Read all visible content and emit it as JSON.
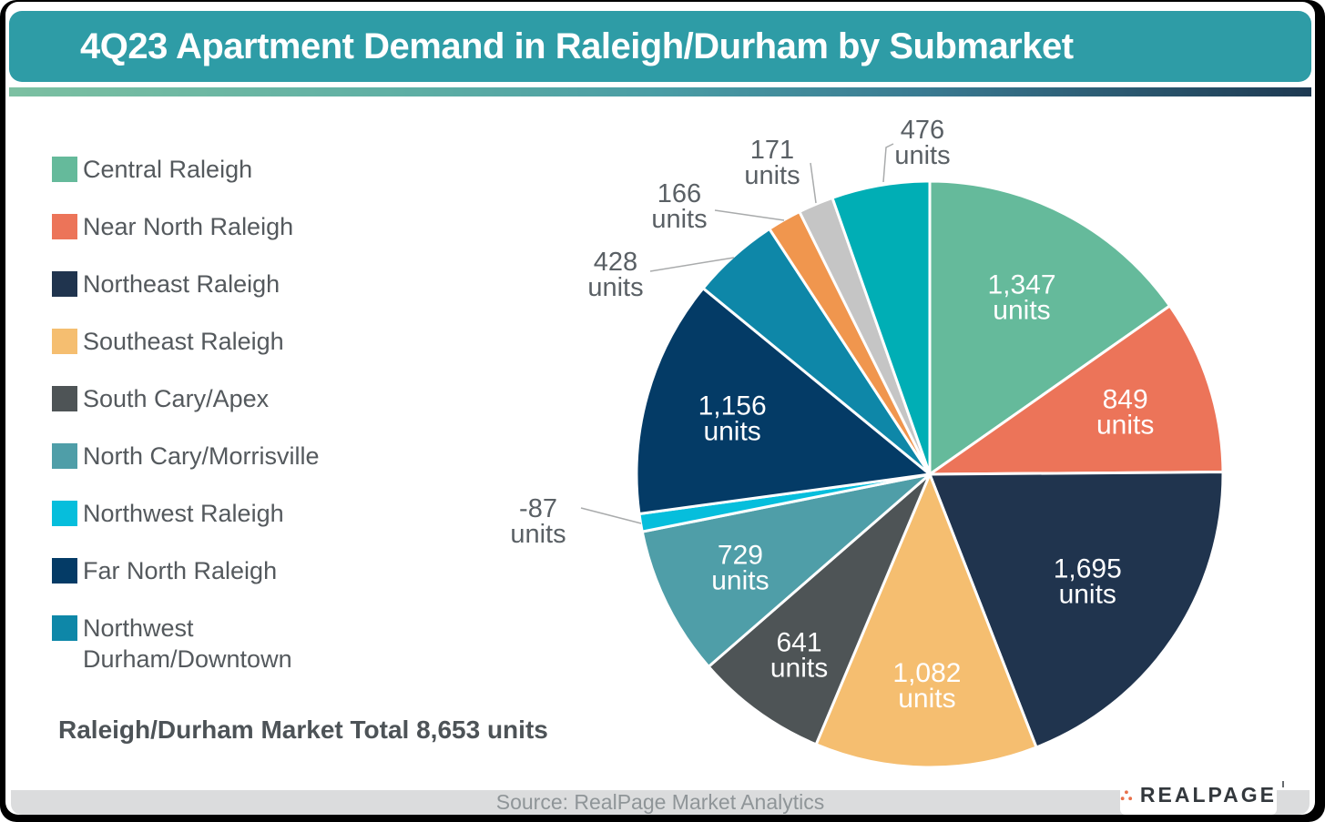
{
  "header": {
    "title": "4Q23 Apartment Demand in Raleigh/Durham by Submarket"
  },
  "legend": [
    {
      "label_lines": [
        "Central Raleigh"
      ],
      "color": "#65BA9B"
    },
    {
      "label_lines": [
        "Near North Raleigh"
      ],
      "color": "#EC7459"
    },
    {
      "label_lines": [
        "Northeast Raleigh"
      ],
      "color": "#20344E"
    },
    {
      "label_lines": [
        "Southeast Raleigh"
      ],
      "color": "#F5BE70"
    },
    {
      "label_lines": [
        "South Cary/Apex"
      ],
      "color": "#4E5456"
    },
    {
      "label_lines": [
        "North Cary/Morrisville"
      ],
      "color": "#4F9EA8"
    },
    {
      "label_lines": [
        "Northwest Raleigh"
      ],
      "color": "#06BEDC"
    },
    {
      "label_lines": [
        "Far North Raleigh"
      ],
      "color": "#043B66"
    },
    {
      "label_lines": [
        "Northwest",
        "Durham/Downtown"
      ],
      "color": "#0E87A8"
    }
  ],
  "chart_data": {
    "type": "pie",
    "title": "4Q23 Apartment Demand in Raleigh/Durham by Submarket",
    "total_units": 8653,
    "total_label": "Raleigh/Durham Market Total 8,653 units",
    "legend_position": "left",
    "slices": [
      {
        "name": "Central Raleigh",
        "value": 1347,
        "label_lines": [
          "1,347",
          "units"
        ],
        "color": "#65BA9B"
      },
      {
        "name": "Near North Raleigh",
        "value": 849,
        "label_lines": [
          "849",
          "units"
        ],
        "color": "#EC7459"
      },
      {
        "name": "Northeast Raleigh",
        "value": 1695,
        "label_lines": [
          "1,695",
          "units"
        ],
        "color": "#20344E"
      },
      {
        "name": "Southeast Raleigh",
        "value": 1082,
        "label_lines": [
          "1,082",
          "units"
        ],
        "color": "#F5BE70"
      },
      {
        "name": "South Cary/Apex",
        "value": 641,
        "label_lines": [
          "641",
          "units"
        ],
        "color": "#4E5456"
      },
      {
        "name": "North Cary/Morrisville",
        "value": 729,
        "label_lines": [
          "729",
          "units"
        ],
        "color": "#4F9EA8"
      },
      {
        "name": "Northwest Raleigh",
        "value": -87,
        "label_lines": [
          "-87",
          "units"
        ],
        "color": "#06BEDC"
      },
      {
        "name": "Far North Raleigh",
        "value": 1156,
        "label_lines": [
          "1,156",
          "units"
        ],
        "color": "#043B66"
      },
      {
        "name": "Northwest Durham/Downtown",
        "value": 428,
        "label_lines": [
          "428",
          "units"
        ],
        "color": "#0E87A8"
      },
      {
        "name": "",
        "value": 166,
        "label_lines": [
          "166",
          "units"
        ],
        "color": "#F0964E"
      },
      {
        "name": "",
        "value": 171,
        "label_lines": [
          "171",
          "units"
        ],
        "color": "#C5C5C5"
      },
      {
        "name": "",
        "value": 476,
        "label_lines": [
          "476",
          "units"
        ],
        "color": "#00AEB5"
      }
    ]
  },
  "footer": {
    "source": "Source: RealPage Market Analytics",
    "logo_text": "REALPAGE"
  },
  "colors": {
    "header_bg": "#2E9CA6",
    "source_bar_bg": "#DBDCDD",
    "logo_dot": "#E8714B",
    "frame": "#000000",
    "outside_label": "#5A6065",
    "leader_line": "#A9ABAC"
  }
}
